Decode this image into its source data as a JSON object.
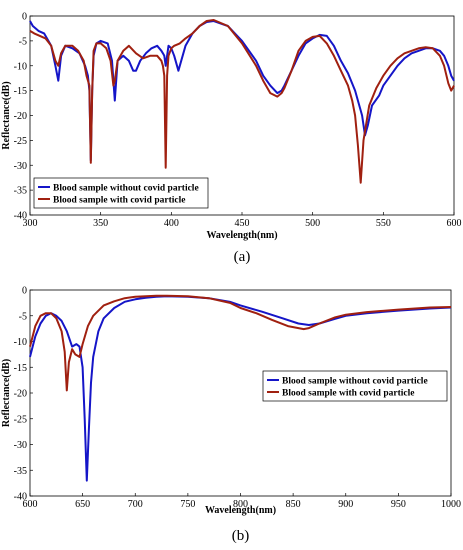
{
  "chart_data": [
    {
      "type": "line",
      "panel_label": "(a)",
      "xlabel": "Wavelength(nm)",
      "ylabel": "Reflectance(dB)",
      "xlim": [
        300,
        600
      ],
      "ylim": [
        -40,
        0
      ],
      "xticks": [
        300,
        350,
        400,
        450,
        500,
        550,
        600
      ],
      "yticks": [
        0,
        -5,
        -10,
        -15,
        -20,
        -25,
        -30,
        -35,
        -40
      ],
      "legend_position": "lower-left",
      "series": [
        {
          "name": "Blood sample without covid particle",
          "color": "#1515c8",
          "x": [
            300,
            302,
            306,
            310,
            315,
            318,
            320,
            322,
            325,
            330,
            335,
            339,
            341,
            342,
            343,
            344,
            345,
            347,
            350,
            355,
            358,
            360,
            362,
            366,
            370,
            373,
            375,
            378,
            382,
            386,
            390,
            393,
            394,
            395,
            396,
            397,
            398,
            400,
            402,
            405,
            410,
            415,
            420,
            425,
            430,
            440,
            450,
            460,
            465,
            470,
            475,
            478,
            480,
            485,
            490,
            495,
            500,
            505,
            510,
            515,
            520,
            525,
            530,
            535,
            537,
            539,
            542,
            547,
            550,
            555,
            560,
            565,
            570,
            575,
            580,
            585,
            590,
            593,
            596,
            598,
            600
          ],
          "y": [
            -1,
            -2,
            -3,
            -3.5,
            -6,
            -10,
            -13,
            -8,
            -6,
            -6.5,
            -7.5,
            -10,
            -12,
            -15,
            -29,
            -15,
            -8,
            -5.5,
            -5,
            -5.5,
            -9,
            -17,
            -9,
            -8,
            -9,
            -11,
            -11,
            -9,
            -7.5,
            -6.5,
            -6,
            -7,
            -7.5,
            -8,
            -10,
            -8,
            -6,
            -6.5,
            -8,
            -11,
            -6,
            -3.5,
            -2,
            -1.2,
            -1,
            -2,
            -5,
            -9,
            -12,
            -14,
            -15.5,
            -15,
            -14,
            -11,
            -8,
            -5.5,
            -4.5,
            -3.8,
            -4,
            -6,
            -9,
            -11.5,
            -15,
            -20,
            -24,
            -22,
            -18,
            -16,
            -14,
            -12,
            -10,
            -8.5,
            -7.5,
            -7,
            -6.5,
            -6.5,
            -7,
            -8,
            -10,
            -12,
            -13
          ]
        },
        {
          "name": "Blood sample with covid particle",
          "color": "#a02010",
          "x": [
            300,
            303,
            307,
            311,
            315,
            318,
            320,
            322,
            325,
            330,
            334,
            338,
            340,
            342,
            343,
            344,
            345,
            347,
            350,
            354,
            357,
            359,
            360,
            362,
            366,
            370,
            375,
            380,
            385,
            390,
            393,
            394,
            395,
            396,
            397,
            398,
            400,
            402,
            406,
            410,
            415,
            420,
            425,
            430,
            440,
            450,
            460,
            465,
            470,
            475,
            478,
            480,
            485,
            490,
            495,
            500,
            505,
            510,
            515,
            520,
            525,
            528,
            530,
            532,
            534,
            536,
            540,
            545,
            550,
            555,
            560,
            565,
            570,
            575,
            580,
            585,
            590,
            593,
            596,
            598,
            600
          ],
          "y": [
            -3,
            -3.5,
            -4,
            -4.5,
            -6,
            -9,
            -10,
            -7.5,
            -6,
            -6,
            -7,
            -9,
            -12,
            -14,
            -29.5,
            -15,
            -7,
            -5.5,
            -5.5,
            -6.5,
            -9,
            -14,
            -13,
            -9,
            -7,
            -6,
            -7.5,
            -8.5,
            -8,
            -8,
            -9,
            -10,
            -12,
            -30.5,
            -12,
            -8,
            -6.5,
            -6,
            -5.5,
            -4.5,
            -3.5,
            -2,
            -1,
            -0.8,
            -2,
            -5.5,
            -10,
            -13,
            -15.5,
            -16.2,
            -15.5,
            -14.5,
            -11,
            -7,
            -5,
            -4.2,
            -4,
            -5.5,
            -8,
            -11,
            -14,
            -17,
            -20,
            -26,
            -33.5,
            -25,
            -18,
            -14.5,
            -12,
            -10,
            -8.5,
            -7.5,
            -7,
            -6.5,
            -6.3,
            -6.5,
            -8,
            -10,
            -13.5,
            -15,
            -14
          ]
        }
      ]
    },
    {
      "type": "line",
      "panel_label": "(b)",
      "xlabel": "Wavelength(nm)",
      "ylabel": "Reflectance(dB)",
      "xlim": [
        600,
        1000
      ],
      "ylim": [
        -40,
        0
      ],
      "xticks": [
        600,
        650,
        700,
        750,
        800,
        850,
        900,
        950,
        1000
      ],
      "yticks": [
        0,
        -5,
        -10,
        -15,
        -20,
        -25,
        -30,
        -35,
        -40
      ],
      "legend_position": "center-right",
      "series": [
        {
          "name": "Blood sample without covid particle",
          "color": "#1515c8",
          "x": [
            600,
            605,
            610,
            615,
            620,
            625,
            630,
            635,
            640,
            644,
            647,
            650,
            652,
            654,
            656,
            658,
            660,
            665,
            670,
            680,
            690,
            700,
            710,
            720,
            730,
            750,
            770,
            790,
            800,
            820,
            840,
            855,
            865,
            875,
            890,
            900,
            920,
            950,
            980,
            1000
          ],
          "y": [
            -13,
            -9,
            -6.5,
            -5,
            -4.5,
            -5,
            -6,
            -8,
            -11,
            -10.5,
            -11,
            -15,
            -25,
            -37,
            -27,
            -18,
            -13,
            -8,
            -5.5,
            -3.5,
            -2.3,
            -1.8,
            -1.5,
            -1.3,
            -1.2,
            -1.3,
            -1.6,
            -2.3,
            -3,
            -4.2,
            -5.5,
            -6.5,
            -6.8,
            -6.5,
            -5.6,
            -5,
            -4.5,
            -4,
            -3.6,
            -3.4
          ]
        },
        {
          "name": "Blood sample with covid particle",
          "color": "#a02010",
          "x": [
            600,
            605,
            610,
            615,
            620,
            625,
            630,
            633,
            635,
            637,
            640,
            643,
            647,
            650,
            655,
            660,
            670,
            680,
            690,
            700,
            710,
            720,
            730,
            750,
            770,
            790,
            800,
            815,
            830,
            845,
            860,
            865,
            875,
            890,
            900,
            920,
            950,
            980,
            1000
          ],
          "y": [
            -11,
            -7,
            -5,
            -4.5,
            -4.5,
            -5.5,
            -8,
            -12,
            -19.5,
            -14,
            -11.5,
            -12.5,
            -13,
            -10.5,
            -7,
            -5,
            -3,
            -2.2,
            -1.6,
            -1.3,
            -1.2,
            -1.1,
            -1.1,
            -1.2,
            -1.6,
            -2.5,
            -3.5,
            -4.5,
            -5.8,
            -7,
            -7.6,
            -7.4,
            -6.5,
            -5.3,
            -4.8,
            -4.3,
            -3.8,
            -3.4,
            -3.3
          ]
        }
      ]
    }
  ]
}
